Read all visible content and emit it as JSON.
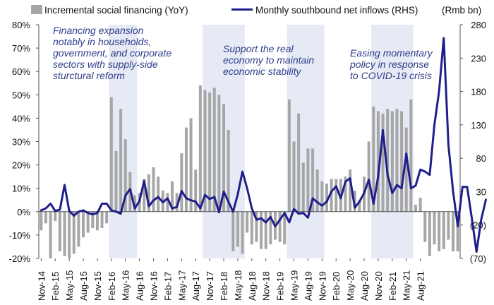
{
  "chart_data": {
    "type": "bar+line",
    "legend": {
      "bar_label": "Incremental social financing (YoY)",
      "line_label": "Monthly southbound net inflows (RHS)",
      "rhs_unit": "(Rmb bn)",
      "placement": "top"
    },
    "x_tick_labels": [
      "Nov-14",
      "Feb-15",
      "May-15",
      "Aug-15",
      "Nov-15",
      "Feb-16",
      "May-16",
      "Aug-16",
      "Nov-16",
      "Feb-17",
      "May-17",
      "Aug-17",
      "Nov-17",
      "Feb-18",
      "May-18",
      "Aug-18",
      "Nov-18",
      "Feb-19",
      "May-19",
      "Aug-19",
      "Nov-19",
      "Feb-20",
      "May-20",
      "Aug-20",
      "Nov-20",
      "Feb-21",
      "May-21",
      "Aug-21"
    ],
    "y_left": {
      "ticks": [
        "-20%",
        "-10%",
        "0%",
        "10%",
        "20%",
        "30%",
        "40%",
        "50%",
        "60%",
        "70%",
        "80%"
      ],
      "range": [
        -20,
        80
      ]
    },
    "y_right": {
      "ticks": [
        "(70)",
        "(20)",
        "30",
        "80",
        "130",
        "180",
        "230",
        "280"
      ],
      "range": [
        -70,
        280
      ]
    },
    "series": [
      {
        "name": "Incremental social financing (YoY)",
        "kind": "bar",
        "axis": "left",
        "unit": "%",
        "values": [
          -8,
          -5,
          -20,
          -4,
          -17,
          -19,
          -20,
          -18,
          -15,
          -11,
          -9,
          -7,
          -8,
          -7,
          -5,
          49,
          26,
          44,
          31,
          17,
          7,
          8,
          14,
          16,
          19,
          15,
          9,
          8,
          13,
          8,
          25,
          36,
          40,
          18,
          54,
          52,
          51,
          53,
          50,
          46,
          35,
          -17,
          -15,
          -18,
          -9,
          -14,
          -13,
          -16,
          -16,
          -14,
          -12,
          -13,
          -14,
          48,
          30,
          42,
          21,
          27,
          27,
          18,
          13,
          12,
          14,
          14,
          14,
          15,
          18,
          9,
          5,
          15,
          30,
          45,
          43,
          42,
          44,
          43,
          44,
          43,
          36,
          48,
          3,
          6,
          -13,
          -19,
          -14,
          -17,
          -16,
          -12,
          -17,
          -17
        ]
      },
      {
        "name": "Monthly southbound net inflows (RHS)",
        "kind": "line",
        "axis": "right",
        "unit": "Rmb bn",
        "values": [
          2,
          5,
          12,
          1,
          3,
          40,
          1,
          -6,
          0,
          2,
          -2,
          -4,
          -2,
          12,
          12,
          2,
          0,
          -3,
          24,
          34,
          5,
          16,
          46,
          8,
          17,
          22,
          14,
          20,
          5,
          7,
          31,
          20,
          17,
          15,
          5,
          25,
          19,
          22,
          -1,
          30,
          15,
          0,
          26,
          60,
          35,
          5,
          -12,
          -10,
          -16,
          -8,
          -22,
          -12,
          -2,
          -16,
          4,
          -3,
          -2,
          -9,
          20,
          14,
          9,
          15,
          30,
          38,
          20,
          45,
          50,
          6,
          15,
          28,
          48,
          12,
          53,
          122,
          55,
          28,
          40,
          35,
          87,
          35,
          39,
          63,
          60,
          55,
          130,
          180,
          260,
          100,
          30,
          -22,
          37,
          37,
          -10,
          -60,
          -12,
          18
        ]
      }
    ],
    "shaded_periods": [
      {
        "start_index": 15,
        "end_index": 20
      },
      {
        "start_index": 35,
        "end_index": 43
      },
      {
        "start_index": 53,
        "end_index": 60
      },
      {
        "start_index": 71,
        "end_index": 79
      }
    ],
    "annotations": [
      "Financing expansion notably in households, government, and corporate sectors with supply-side sturctural reform",
      "Support the real economy to maintain economic stability",
      "Easing momentary policy in response to COVID-19 crisis"
    ],
    "grid": false
  },
  "annotation_lines": [
    [
      "Financing expansion",
      "notably in households,",
      "government, and corporate",
      "sectors with supply-side",
      "sturctural reform"
    ],
    [
      "Support the real",
      "economy to maintain",
      "economic stability"
    ],
    [
      "Easing momentary",
      "policy in response",
      "to COVID-19 crisis"
    ]
  ],
  "colors": {
    "bar": "#a6a6a6",
    "line": "#1f1f8c",
    "shade": "#e5eaf5",
    "annotation": "#2f3d8a",
    "axis": "#555555"
  }
}
